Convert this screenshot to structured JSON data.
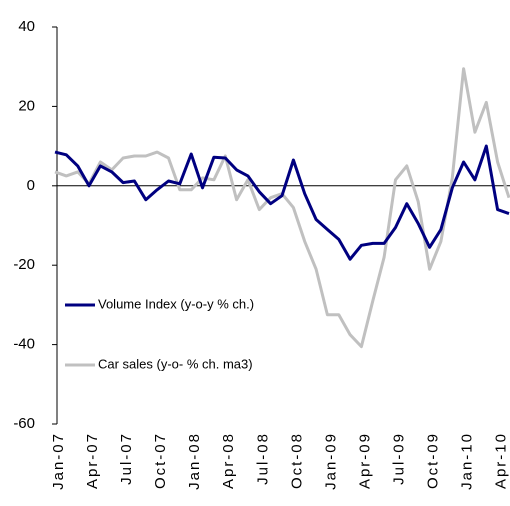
{
  "chart_data": {
    "type": "line",
    "categories": [
      "Jan-07",
      null,
      null,
      "Apr-07",
      null,
      null,
      "Jul-07",
      null,
      null,
      "Oct-07",
      null,
      null,
      "Jan-08",
      null,
      null,
      "Apr-08",
      null,
      null,
      "Jul-08",
      null,
      null,
      "Oct-08",
      null,
      null,
      "Jan-09",
      null,
      null,
      "Apr-09",
      null,
      null,
      "Jul-09",
      null,
      null,
      "Oct-09",
      null,
      null,
      "Jan-10",
      null,
      null,
      "Apr-10",
      null
    ],
    "series": [
      {
        "name": "Volume Index (y-o-y % ch.)",
        "color": "#000080",
        "values": [
          8.5,
          7.8,
          5,
          0,
          5,
          3.5,
          0.8,
          1.2,
          -3.5,
          -1,
          1.2,
          0.5,
          8,
          -0.5,
          7.2,
          7,
          4,
          2.5,
          -1.5,
          -4.5,
          -2.5,
          6.5,
          -2,
          -8.5,
          -11,
          -13.5,
          -18.5,
          -15,
          -14.5,
          -14.5,
          -10.5,
          -4.5,
          -9.5,
          -15.5,
          -11,
          -0.5,
          6,
          1.5,
          10,
          -6,
          -7
        ]
      },
      {
        "name": "Car sales (y-o- % ch. ma3)",
        "color": "#c0c0c0",
        "values": [
          3.5,
          2.5,
          3.5,
          0.5,
          6,
          4,
          7,
          7.5,
          7.5,
          8.5,
          7,
          -1,
          -1,
          2,
          1.5,
          7.5,
          -3.5,
          1.5,
          -6,
          -3,
          -2,
          -5.5,
          -14,
          -21,
          -32.5,
          -32.5,
          -37.5,
          -40.5,
          -29,
          -18,
          1.5,
          5,
          -4,
          -21,
          -14,
          2,
          29.5,
          13.5,
          21,
          6,
          -3
        ]
      }
    ],
    "ylim": [
      -60,
      40
    ],
    "yticks": [
      -60,
      -40,
      -20,
      0,
      20,
      40
    ],
    "grid": false,
    "legend": "left"
  }
}
